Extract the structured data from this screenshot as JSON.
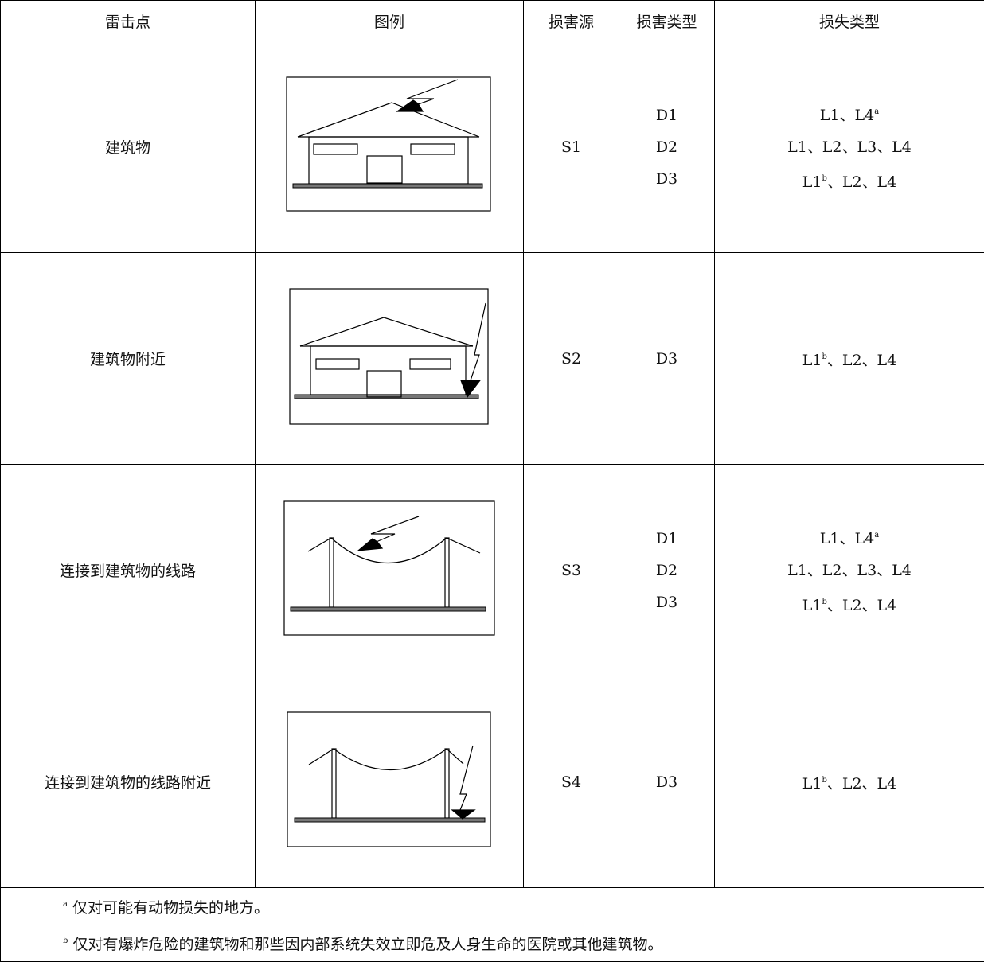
{
  "table": {
    "header": [
      "雷击点",
      "图例",
      "损害源",
      "损害类型",
      "损失类型"
    ],
    "rows": [
      {
        "point": "建筑物",
        "source": "S1",
        "damage": [
          "D1",
          "D2",
          "D3"
        ],
        "loss": [
          {
            "text": "L1、L4",
            "sup": "a"
          },
          {
            "text": "L1、L2、L3、L4"
          },
          {
            "text": "L1",
            "sup": "b",
            "rest": "、L2、L4"
          }
        ]
      },
      {
        "point": "建筑物附近",
        "source": "S2",
        "damage": [
          "D3"
        ],
        "loss": [
          {
            "text": "L1",
            "sup": "b",
            "rest": "、L2、L4"
          }
        ]
      },
      {
        "point": "连接到建筑物的线路",
        "source": "S3",
        "damage": [
          "D1",
          "D2",
          "D3"
        ],
        "loss": [
          {
            "text": "L1、L4",
            "sup": "a"
          },
          {
            "text": "L1、L2、L3、L4"
          },
          {
            "text": "L1",
            "sup": "b",
            "rest": "、L2、L4"
          }
        ]
      },
      {
        "point": "连接到建筑物的线路附近",
        "source": "S4",
        "damage": [
          "D3"
        ],
        "loss": [
          {
            "text": "L1",
            "sup": "b",
            "rest": "、L2、L4"
          }
        ]
      }
    ],
    "footnotes": [
      {
        "mark": "a",
        "text": "仅对可能有动物损失的地方。"
      },
      {
        "mark": "b",
        "text": "仅对有爆炸危险的建筑物和那些因内部系统失效立即危及人身生命的医院或其他建筑物。"
      }
    ]
  }
}
